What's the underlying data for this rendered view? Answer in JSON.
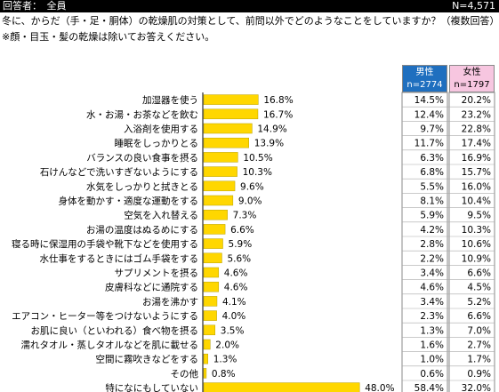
{
  "header": {
    "respondents": "回答者：　全員",
    "n": "N=4,571"
  },
  "question": "冬に、からだ（手・足・胴体）の乾燥肌の対策として、前問以外でどのようなことをしていますか？（複数回答）",
  "note": "※顔・目玉・髪の乾燥は除いてお答えください。",
  "columns": {
    "male": {
      "label": "男性",
      "count": "n=2774"
    },
    "female": {
      "label": "女性",
      "count": "n=1797"
    }
  },
  "colors": {
    "bar": "#ffd700",
    "male_header": "#1f6fbf",
    "female_header": "#f7c6e0"
  },
  "chart_data": {
    "type": "bar",
    "orientation": "horizontal",
    "categories": [
      "加湿器を使う",
      "水・お湯・お茶などを飲む",
      "入浴剤を使用する",
      "睡眠をしっかりとる",
      "バランスの良い食事を摂る",
      "石けんなどで洗いすぎないようにする",
      "水気をしっかりと拭きとる",
      "身体を動かす・適度な運動をする",
      "空気を入れ替える",
      "お湯の温度はぬるめにする",
      "寝る時に保湿用の手袋や靴下などを使用する",
      "水仕事をするときにはゴム手袋をする",
      "サプリメントを摂る",
      "皮膚科などに通院する",
      "お湯を沸かす",
      "エアコン・ヒーター等をつけないようにする",
      "お肌に良い（といわれる）食べ物を摂る",
      "濡れタオル・蒸しタオルなどを肌に載せる",
      "空間に霧吹きなどをする",
      "その他",
      "特になにもしていない"
    ],
    "values": [
      16.8,
      16.7,
      14.9,
      13.9,
      10.5,
      10.3,
      9.6,
      9.0,
      7.3,
      6.6,
      5.9,
      5.6,
      4.6,
      4.6,
      4.1,
      4.0,
      3.5,
      2.0,
      1.3,
      0.8,
      48.0
    ],
    "value_labels": [
      "16.8%",
      "16.7%",
      "14.9%",
      "13.9%",
      "10.5%",
      "10.3%",
      "9.6%",
      "9.0%",
      "7.3%",
      "6.6%",
      "5.9%",
      "5.6%",
      "4.6%",
      "4.6%",
      "4.1%",
      "4.0%",
      "3.5%",
      "2.0%",
      "1.3%",
      "0.8%",
      "48.0%"
    ],
    "male": [
      "14.5%",
      "12.4%",
      "9.7%",
      "11.7%",
      "6.3%",
      "6.8%",
      "5.5%",
      "8.1%",
      "5.9%",
      "4.2%",
      "2.8%",
      "2.2%",
      "3.4%",
      "4.6%",
      "3.4%",
      "2.3%",
      "1.3%",
      "1.6%",
      "1.0%",
      "0.6%",
      "58.4%"
    ],
    "female": [
      "20.2%",
      "23.2%",
      "22.8%",
      "17.4%",
      "16.9%",
      "15.7%",
      "16.0%",
      "10.4%",
      "9.5%",
      "10.3%",
      "10.6%",
      "10.9%",
      "6.6%",
      "4.5%",
      "5.2%",
      "6.6%",
      "7.0%",
      "2.7%",
      "1.7%",
      "0.9%",
      "32.0%"
    ],
    "xlim": [
      0,
      50
    ],
    "grid": false,
    "legend": "none"
  }
}
